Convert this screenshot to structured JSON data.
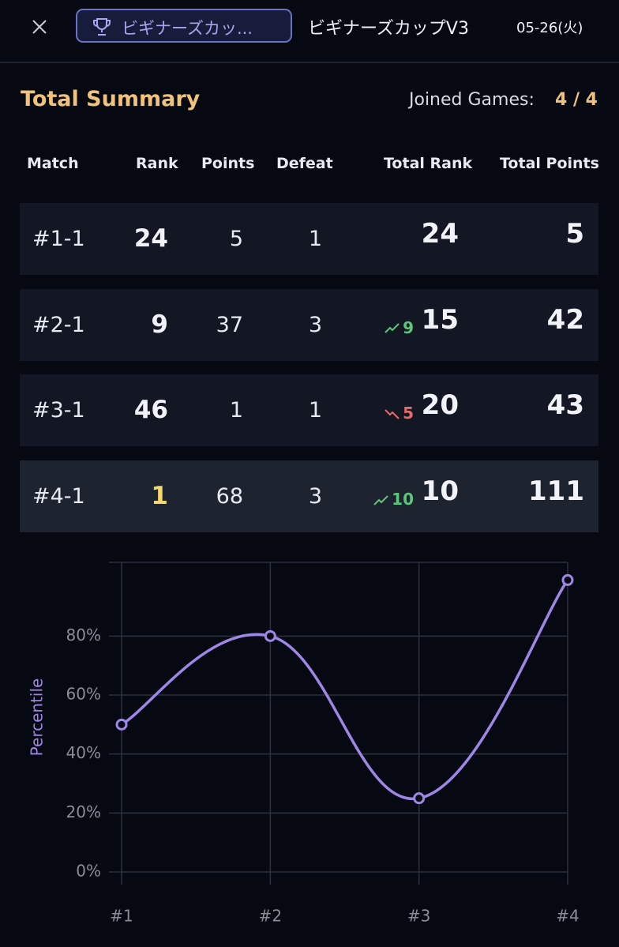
{
  "header": {
    "badge": "ビギナーズカッ...",
    "title": "ビギナーズカップV3",
    "date": "05-26(火)"
  },
  "summary": {
    "title": "Total Summary",
    "joined_label": "Joined Games:",
    "joined_value": "4 / 4"
  },
  "table": {
    "columns": [
      "Match",
      "Rank",
      "Points",
      "Defeat",
      "Total Rank",
      "Total Points"
    ],
    "rows": [
      {
        "match": "#1-1",
        "rank": 24,
        "points": 5,
        "defeat": 1,
        "total_rank": 24,
        "total_points": 5
      },
      {
        "match": "#2-1",
        "rank": 9,
        "points": 37,
        "defeat": 3,
        "change": {
          "direction": "up",
          "value": 9
        },
        "total_rank": 15,
        "total_points": 42
      },
      {
        "match": "#3-1",
        "rank": 46,
        "points": 1,
        "defeat": 1,
        "change": {
          "direction": "down",
          "value": 5
        },
        "total_rank": 20,
        "total_points": 43
      },
      {
        "match": "#4-1",
        "rank": 1,
        "points": 68,
        "defeat": 3,
        "change": {
          "direction": "up",
          "value": 10
        },
        "total_rank": 10,
        "total_points": 111,
        "highlight": true
      }
    ]
  },
  "chart_data": {
    "type": "line",
    "y_label": "Percentile",
    "categories": [
      "#1",
      "#2",
      "#3",
      "#4"
    ],
    "values": [
      50,
      80,
      25,
      99
    ],
    "color": "#9d86e6",
    "ylim": [
      0,
      105
    ],
    "yticks": [
      {
        "value": 0,
        "label": "0%"
      },
      {
        "value": 20,
        "label": "20%"
      },
      {
        "value": 40,
        "label": "40%"
      },
      {
        "value": 60,
        "label": "60%"
      },
      {
        "value": 80,
        "label": "80%"
      }
    ],
    "grid": true
  }
}
